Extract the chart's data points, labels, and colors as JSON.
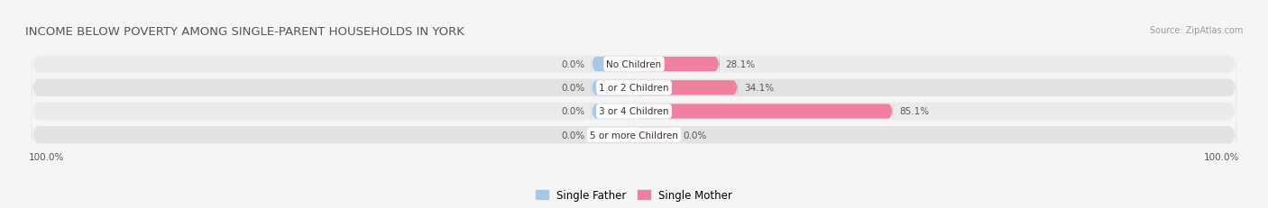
{
  "title": "INCOME BELOW POVERTY AMONG SINGLE-PARENT HOUSEHOLDS IN YORK",
  "source": "Source: ZipAtlas.com",
  "categories": [
    "No Children",
    "1 or 2 Children",
    "3 or 4 Children",
    "5 or more Children"
  ],
  "single_father": [
    0.0,
    0.0,
    0.0,
    0.0
  ],
  "single_mother": [
    28.1,
    34.1,
    85.1,
    0.0
  ],
  "father_color": "#a8c8e8",
  "mother_color": "#f080a0",
  "row_bg_color": "#ebebeb",
  "row_bg_alt": "#e2e2e2",
  "title_fontsize": 9.5,
  "label_fontsize": 7.5,
  "axis_range": 100.0,
  "father_label": "Single Father",
  "mother_label": "Single Mother",
  "left_label": "100.0%",
  "right_label": "100.0%"
}
